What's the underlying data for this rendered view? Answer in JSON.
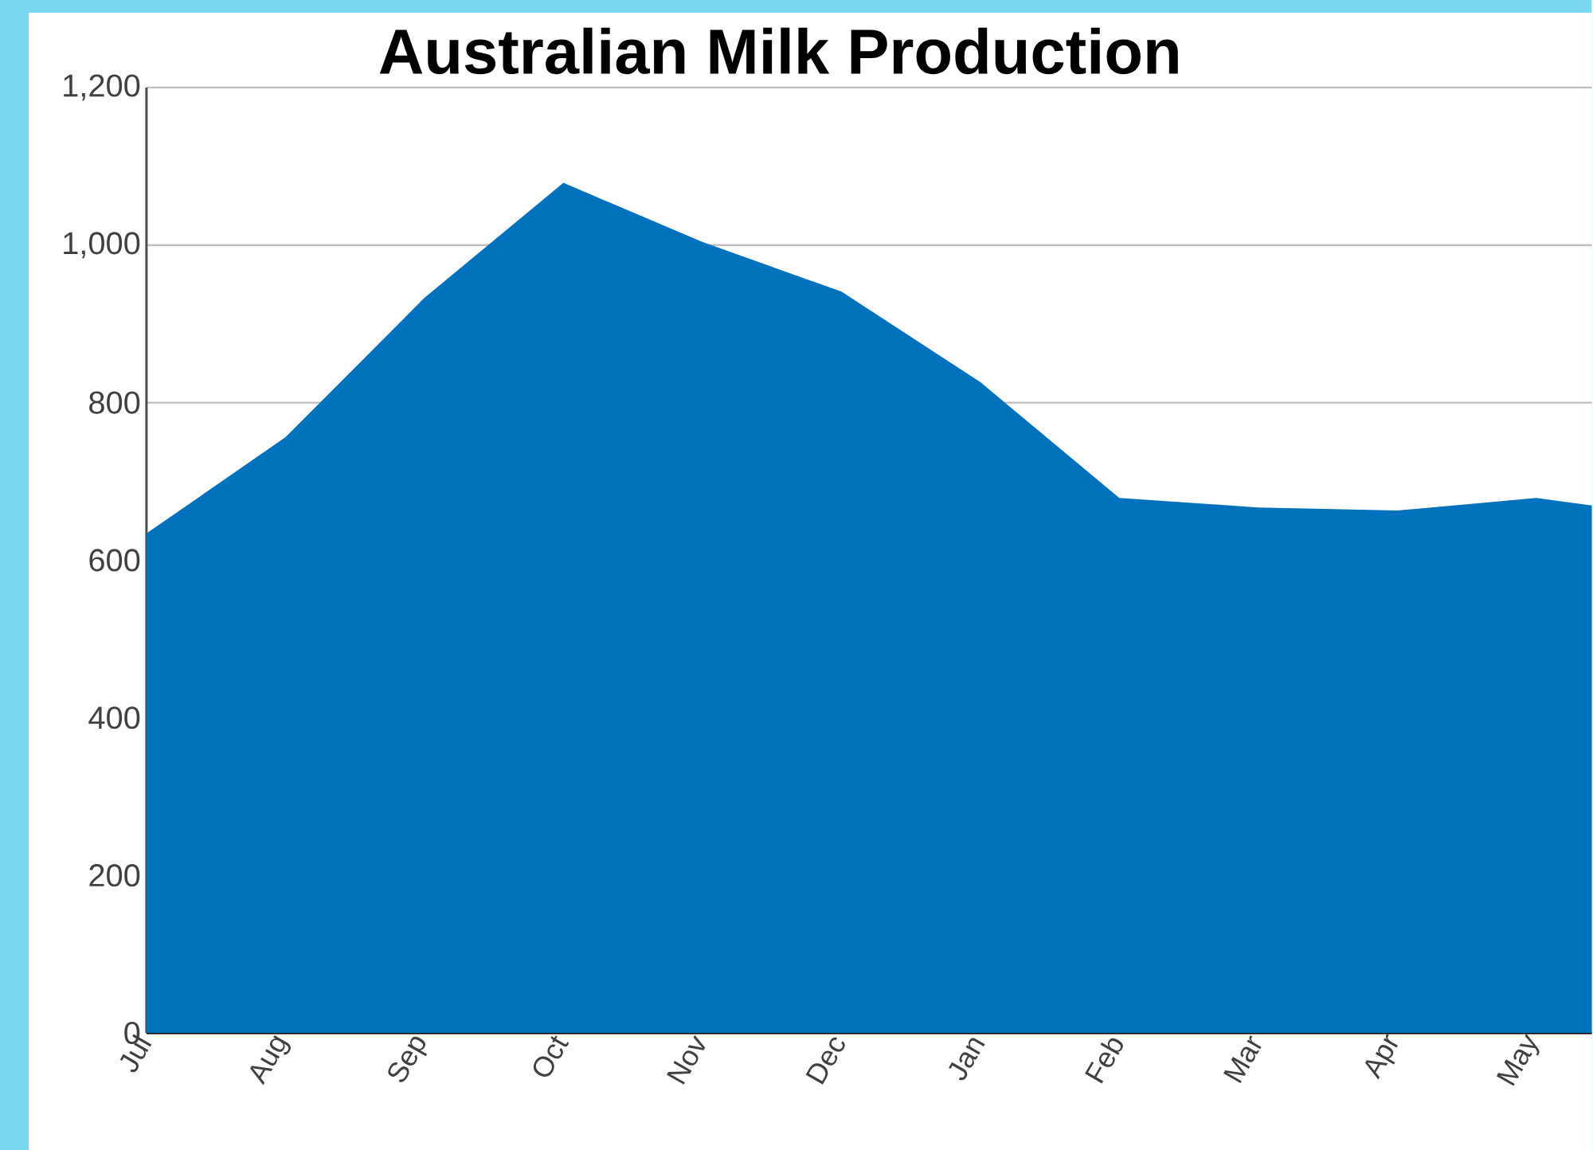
{
  "chart_data": {
    "type": "area",
    "title": "Australian Milk Production",
    "categories": [
      "Jul",
      "Aug",
      "Sep",
      "Oct",
      "Nov",
      "Dec",
      "Jan",
      "Feb",
      "Mar",
      "Apr",
      "May",
      null
    ],
    "values": [
      634,
      756,
      933,
      1079,
      1004,
      941,
      826,
      679,
      667,
      663,
      679,
      655
    ],
    "color": "#0071bc",
    "ylim": [
      0,
      1200
    ],
    "yticks": [
      0,
      200,
      400,
      600,
      800,
      {
        "value": 1000,
        "label": "1,000"
      },
      {
        "value": 1200,
        "label": "1,200"
      }
    ],
    "grid": "y"
  }
}
